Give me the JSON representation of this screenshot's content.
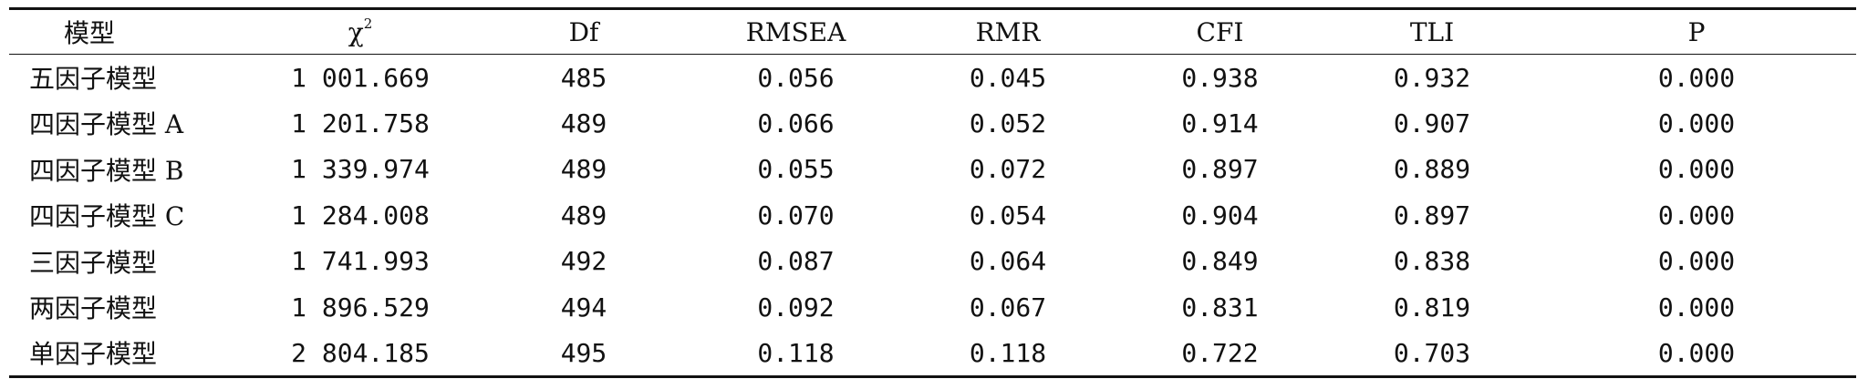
{
  "table": {
    "headers": {
      "model": "模型",
      "chi_symbol": "χ",
      "chi_superscript": "2",
      "df": "Df",
      "rmsea": "RMSEA",
      "rmr": "RMR",
      "cfi": "CFI",
      "tli": "TLI",
      "p": "P"
    },
    "rows": [
      {
        "model": "五因子模型",
        "chi2": "1 001.669",
        "df": "485",
        "rmsea": "0.056",
        "rmr": "0.045",
        "cfi": "0.938",
        "tli": "0.932",
        "p": "0.000"
      },
      {
        "model": "四因子模型 A",
        "chi2": "1 201.758",
        "df": "489",
        "rmsea": "0.066",
        "rmr": "0.052",
        "cfi": "0.914",
        "tli": "0.907",
        "p": "0.000"
      },
      {
        "model": "四因子模型 B",
        "chi2": "1 339.974",
        "df": "489",
        "rmsea": "0.055",
        "rmr": "0.072",
        "cfi": "0.897",
        "tli": "0.889",
        "p": "0.000"
      },
      {
        "model": "四因子模型 C",
        "chi2": "1 284.008",
        "df": "489",
        "rmsea": "0.070",
        "rmr": "0.054",
        "cfi": "0.904",
        "tli": "0.897",
        "p": "0.000"
      },
      {
        "model": "三因子模型",
        "chi2": "1 741.993",
        "df": "492",
        "rmsea": "0.087",
        "rmr": "0.064",
        "cfi": "0.849",
        "tli": "0.838",
        "p": "0.000"
      },
      {
        "model": "两因子模型",
        "chi2": "1 896.529",
        "df": "494",
        "rmsea": "0.092",
        "rmr": "0.067",
        "cfi": "0.831",
        "tli": "0.819",
        "p": "0.000"
      },
      {
        "model": "单因子模型",
        "chi2": "2 804.185",
        "df": "495",
        "rmsea": "0.118",
        "rmr": "0.118",
        "cfi": "0.722",
        "tli": "0.703",
        "p": "0.000"
      }
    ]
  }
}
